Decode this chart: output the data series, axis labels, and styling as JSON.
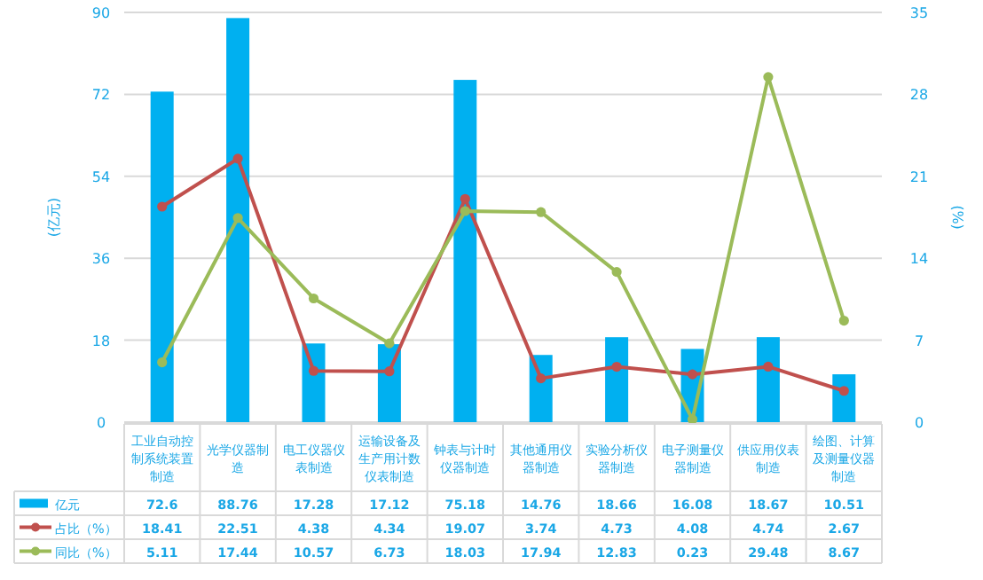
{
  "chart_data": {
    "type": "bar",
    "categories": [
      "工业自动控制系统装置制造",
      "光学仪器制造",
      "电工仪器仪表制造",
      "运输设备及生产用计数仪表制造",
      "钟表与计时仪器制造",
      "其他通用仪器制造",
      "实验分析仪器制造",
      "电子测量仪器制造",
      "供应用仪表制造",
      "绘图、计算及测量仪器制造"
    ],
    "series": [
      {
        "name": "亿元",
        "color": "#00b0f0",
        "values": [
          72.6,
          88.76,
          17.28,
          17.12,
          75.18,
          14.76,
          18.66,
          16.08,
          18.67,
          10.51
        ]
      },
      {
        "name": "占比（%）",
        "type": "line",
        "axis": "y2",
        "color": "#c0504d",
        "values": [
          18.41,
          22.51,
          4.38,
          4.34,
          19.07,
          3.74,
          4.73,
          4.08,
          4.74,
          2.67
        ]
      },
      {
        "name": "同比（%）",
        "type": "line",
        "axis": "y2",
        "color": "#9bbb59",
        "values": [
          5.11,
          17.44,
          10.57,
          6.73,
          18.03,
          17.94,
          12.83,
          0.23,
          29.48,
          8.67
        ]
      }
    ],
    "ylabel": "(亿元)",
    "y2label": "(%)",
    "ylim": [
      0,
      90
    ],
    "yticks": [
      0,
      18,
      36,
      54,
      72,
      90
    ],
    "y2lim": [
      0,
      35
    ],
    "y2ticks": [
      0,
      7,
      14,
      21,
      28,
      35
    ],
    "grid": "y",
    "marker": "circle",
    "line_style": "solid",
    "data_labels": true,
    "legend": "bottom left"
  }
}
